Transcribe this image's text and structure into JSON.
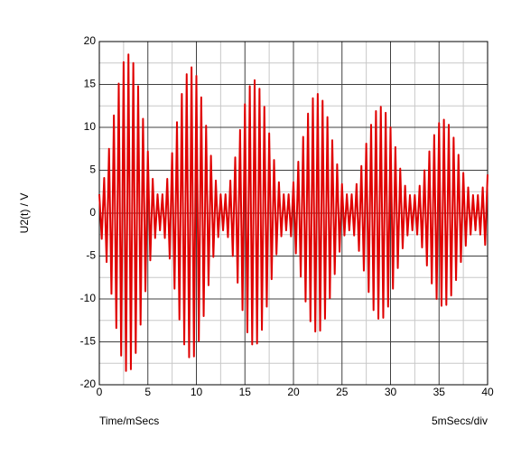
{
  "chart_data": {
    "type": "line",
    "ylabel": "U2(t) / V",
    "xlabel": "Time/mSecs",
    "annotation": "5mSecs/div",
    "xlim": [
      0,
      40
    ],
    "xticks": [
      0,
      5,
      10,
      15,
      20,
      25,
      30,
      35,
      40
    ],
    "ylim": [
      -20,
      20
    ],
    "yticks": [
      -20,
      -15,
      -10,
      -5,
      0,
      5,
      10,
      15,
      20
    ],
    "grid": true,
    "x": [
      0,
      0.25,
      0.5,
      0.75,
      1,
      1.25,
      1.5,
      1.75,
      2,
      2.25,
      2.5,
      2.75,
      3,
      3.25,
      3.5,
      3.75,
      4,
      4.25,
      4.5,
      4.75,
      5,
      5.25,
      5.5,
      5.75,
      6,
      6.25,
      6.5,
      6.75,
      7,
      7.25,
      7.5,
      7.75,
      8,
      8.25,
      8.5,
      8.75,
      9,
      9.25,
      9.5,
      9.75,
      10,
      10.25,
      10.5,
      10.75,
      11,
      11.25,
      11.5,
      11.75,
      12,
      12.25,
      12.5,
      12.75,
      13,
      13.25,
      13.5,
      13.75,
      14,
      14.25,
      14.5,
      14.75,
      15,
      15.25,
      15.5,
      15.75,
      16,
      16.25,
      16.5,
      16.75,
      17,
      17.25,
      17.5,
      17.75,
      18,
      18.25,
      18.5,
      18.75,
      19,
      19.25,
      19.5,
      19.75,
      20,
      20.25,
      20.5,
      20.75,
      21,
      21.25,
      21.5,
      21.75,
      22,
      22.25,
      22.5,
      22.75,
      23,
      23.25,
      23.5,
      23.75,
      24,
      24.25,
      24.5,
      24.75,
      25,
      25.25,
      25.5,
      25.75,
      26,
      26.25,
      26.5,
      26.75,
      27,
      27.25,
      27.5,
      27.75,
      28,
      28.25,
      28.5,
      28.75,
      29,
      29.25,
      29.5,
      29.75,
      30,
      30.25,
      30.5,
      30.75,
      31,
      31.25,
      31.5,
      31.75,
      32,
      32.25,
      32.5,
      32.75,
      33,
      33.25,
      33.5,
      33.75,
      34,
      34.25,
      34.5,
      34.75,
      35,
      35.25,
      35.5,
      35.75,
      36,
      36.25,
      36.5,
      36.75,
      37,
      37.25,
      37.5,
      37.75,
      38,
      38.25,
      38.5,
      38.75,
      39,
      39.25,
      39.5,
      39.75,
      40
    ],
    "series": [
      {
        "color": "#e00000",
        "values": [
          2.2,
          -3.0,
          4.1,
          -5.7,
          7.5,
          -9.4,
          11.4,
          -13.4,
          15.1,
          -16.6,
          17.6,
          -18.4,
          18.5,
          -18.2,
          17.5,
          -16.3,
          14.8,
          -13.0,
          11.0,
          -9.1,
          7.2,
          -5.5,
          4.0,
          -2.9,
          2.2,
          -2.0,
          2.2,
          -2.9,
          4.0,
          -5.3,
          7.0,
          -8.8,
          10.6,
          -12.4,
          13.9,
          -15.3,
          16.2,
          -16.8,
          17.0,
          -16.7,
          16.0,
          -14.9,
          13.5,
          -12.0,
          10.2,
          -8.4,
          6.7,
          -5.1,
          3.8,
          -2.8,
          2.2,
          -2.0,
          2.2,
          -2.8,
          3.8,
          -5.0,
          6.5,
          -8.1,
          9.7,
          -11.3,
          12.7,
          -13.9,
          14.8,
          -15.3,
          15.5,
          -15.2,
          14.5,
          -13.6,
          12.4,
          -10.9,
          9.3,
          -7.7,
          6.2,
          -4.8,
          3.6,
          -2.7,
          2.2,
          -2.0,
          2.2,
          -2.7,
          3.6,
          -4.7,
          6.0,
          -7.4,
          8.9,
          -10.3,
          11.6,
          -12.6,
          13.4,
          -13.8,
          13.9,
          -13.7,
          13.1,
          -12.3,
          11.2,
          -9.9,
          8.5,
          -7.1,
          5.7,
          -4.5,
          3.4,
          -2.6,
          2.2,
          -2.0,
          2.2,
          -2.6,
          3.4,
          -4.4,
          5.5,
          -6.7,
          8.1,
          -9.2,
          10.3,
          -11.3,
          11.9,
          -12.3,
          12.4,
          -12.2,
          11.7,
          -10.9,
          10.0,
          -8.8,
          7.7,
          -6.4,
          5.2,
          -4.1,
          3.2,
          -2.6,
          2.1,
          -2.0,
          2.1,
          -2.5,
          3.2,
          -4.0,
          5.0,
          -6.1,
          7.2,
          -8.2,
          9.1,
          -10.0,
          10.5,
          -10.8,
          10.9,
          -10.7,
          10.3,
          -9.6,
          8.8,
          -7.8,
          6.8,
          -5.7,
          4.7,
          -3.8,
          3.0,
          -2.5,
          2.1,
          -2.0,
          2.1,
          -2.5,
          3.0,
          -3.7,
          4.5
        ]
      }
    ]
  }
}
